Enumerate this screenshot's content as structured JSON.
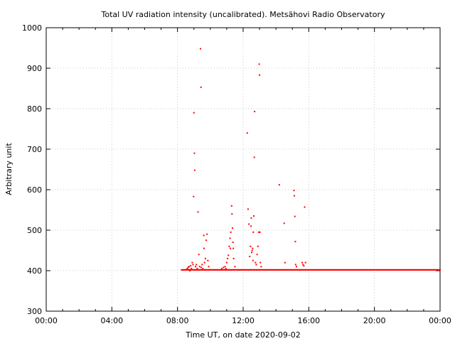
{
  "chart_data": {
    "type": "scatter",
    "title": "Total UV radiation intensity (uncalibrated). Metsähovi Radio Observatory",
    "xlabel": "Time UT, on date 2020-09-02",
    "ylabel": "Arbitrary unit",
    "xlim": [
      0,
      24
    ],
    "ylim": [
      300,
      1000
    ],
    "grid": true,
    "x_ticks": [
      {
        "value": 0,
        "label": "00:00"
      },
      {
        "value": 4,
        "label": "04:00"
      },
      {
        "value": 8,
        "label": "08:00"
      },
      {
        "value": 12,
        "label": "12:00"
      },
      {
        "value": 16,
        "label": "16:00"
      },
      {
        "value": 20,
        "label": "20:00"
      },
      {
        "value": 24,
        "label": "00:00"
      }
    ],
    "y_ticks": [
      {
        "value": 300,
        "label": "300"
      },
      {
        "value": 400,
        "label": "400"
      },
      {
        "value": 500,
        "label": "500"
      },
      {
        "value": 600,
        "label": "600"
      },
      {
        "value": 700,
        "label": "700"
      },
      {
        "value": 800,
        "label": "800"
      },
      {
        "value": 900,
        "label": "900"
      },
      {
        "value": 1000,
        "label": "1000"
      }
    ],
    "marker_color": "#ff0000",
    "baseline": {
      "value": 402,
      "x_start": 8.25,
      "x_end": 24
    },
    "points": [
      [
        8.55,
        403
      ],
      [
        8.6,
        405
      ],
      [
        8.65,
        408
      ],
      [
        8.7,
        410
      ],
      [
        8.75,
        400
      ],
      [
        8.8,
        412
      ],
      [
        8.85,
        405
      ],
      [
        8.9,
        420
      ],
      [
        8.95,
        415
      ],
      [
        9.0,
        790
      ],
      [
        9.03,
        690
      ],
      [
        9.05,
        648
      ],
      [
        8.98,
        583
      ],
      [
        9.1,
        410
      ],
      [
        9.15,
        415
      ],
      [
        9.2,
        405
      ],
      [
        9.25,
        545
      ],
      [
        9.3,
        440
      ],
      [
        9.35,
        410
      ],
      [
        9.4,
        948
      ],
      [
        9.43,
        853
      ],
      [
        9.45,
        408
      ],
      [
        9.5,
        415
      ],
      [
        9.55,
        405
      ],
      [
        9.6,
        487
      ],
      [
        9.62,
        455
      ],
      [
        9.65,
        420
      ],
      [
        9.7,
        430
      ],
      [
        9.75,
        475
      ],
      [
        9.8,
        490
      ],
      [
        9.85,
        425
      ],
      [
        9.9,
        410
      ],
      [
        10.7,
        405
      ],
      [
        10.8,
        408
      ],
      [
        10.9,
        410
      ],
      [
        10.95,
        405
      ],
      [
        11.0,
        420
      ],
      [
        11.05,
        430
      ],
      [
        11.1,
        438
      ],
      [
        11.15,
        460
      ],
      [
        11.2,
        480
      ],
      [
        11.22,
        455
      ],
      [
        11.25,
        495
      ],
      [
        11.3,
        560
      ],
      [
        11.32,
        540
      ],
      [
        11.35,
        505
      ],
      [
        11.38,
        470
      ],
      [
        11.4,
        455
      ],
      [
        11.42,
        430
      ],
      [
        11.5,
        410
      ],
      [
        12.3,
        552
      ],
      [
        12.35,
        515
      ],
      [
        12.4,
        435
      ],
      [
        12.45,
        460
      ],
      [
        12.48,
        510
      ],
      [
        12.5,
        530
      ],
      [
        12.52,
        445
      ],
      [
        12.55,
        450
      ],
      [
        12.58,
        455
      ],
      [
        12.6,
        425
      ],
      [
        12.62,
        495
      ],
      [
        12.65,
        535
      ],
      [
        12.68,
        680
      ],
      [
        12.7,
        793
      ],
      [
        12.75,
        420
      ],
      [
        12.8,
        415
      ],
      [
        12.85,
        440
      ],
      [
        12.9,
        460
      ],
      [
        12.95,
        495
      ],
      [
        12.98,
        910
      ],
      [
        13.0,
        883
      ],
      [
        13.02,
        495
      ],
      [
        13.05,
        420
      ],
      [
        13.1,
        410
      ],
      [
        12.25,
        740
      ],
      [
        14.2,
        612
      ],
      [
        14.5,
        517
      ],
      [
        14.55,
        420
      ],
      [
        15.1,
        598
      ],
      [
        15.12,
        585
      ],
      [
        15.15,
        534
      ],
      [
        15.18,
        472
      ],
      [
        15.2,
        415
      ],
      [
        15.25,
        410
      ],
      [
        15.6,
        420
      ],
      [
        15.65,
        415
      ],
      [
        15.7,
        412
      ],
      [
        15.75,
        557
      ],
      [
        15.8,
        420
      ]
    ]
  }
}
